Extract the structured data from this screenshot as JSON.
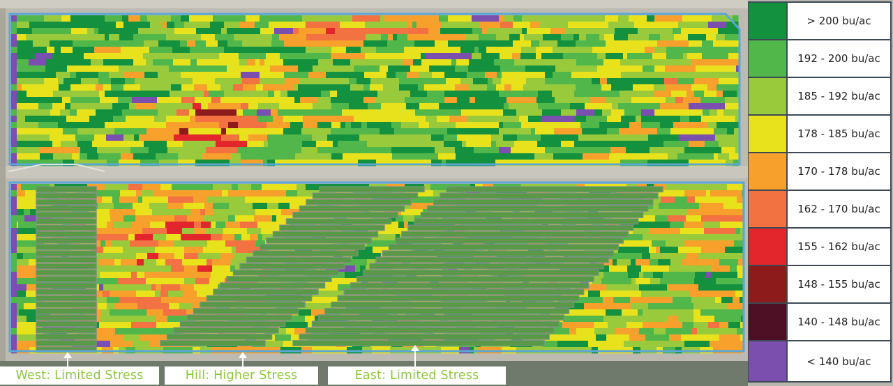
{
  "legend": {
    "items": [
      {
        "label": "> 200 bu/ac",
        "color": "#13913f"
      },
      {
        "label": "192 - 200 bu/ac",
        "color": "#52b74a"
      },
      {
        "label": "185 - 192 bu/ac",
        "color": "#98ca3c"
      },
      {
        "label": "178 - 185 bu/ac",
        "color": "#e8e21c"
      },
      {
        "label": "170 - 178 bu/ac",
        "color": "#f7a02c"
      },
      {
        "label": "162 - 170 bu/ac",
        "color": "#f27341"
      },
      {
        "label": "155 - 162 bu/ac",
        "color": "#e3262b"
      },
      {
        "label": "148 - 155 bu/ac",
        "color": "#8e1b1c"
      },
      {
        "label": "140 - 148 bu/ac",
        "color": "#4e1025"
      },
      {
        "label": "< 140 bu/ac",
        "color": "#7a4fad"
      }
    ]
  },
  "zones": {
    "west": "West: Limited Stress",
    "hill": "Hill: Higher Stress",
    "east": "East: Limited Stress"
  },
  "colors": {
    "boundary": "#5aa6d6",
    "label_text": "#8cc63f",
    "strip_fill": "#4f9e3f",
    "strip_outline": "#7c8f7e"
  }
}
